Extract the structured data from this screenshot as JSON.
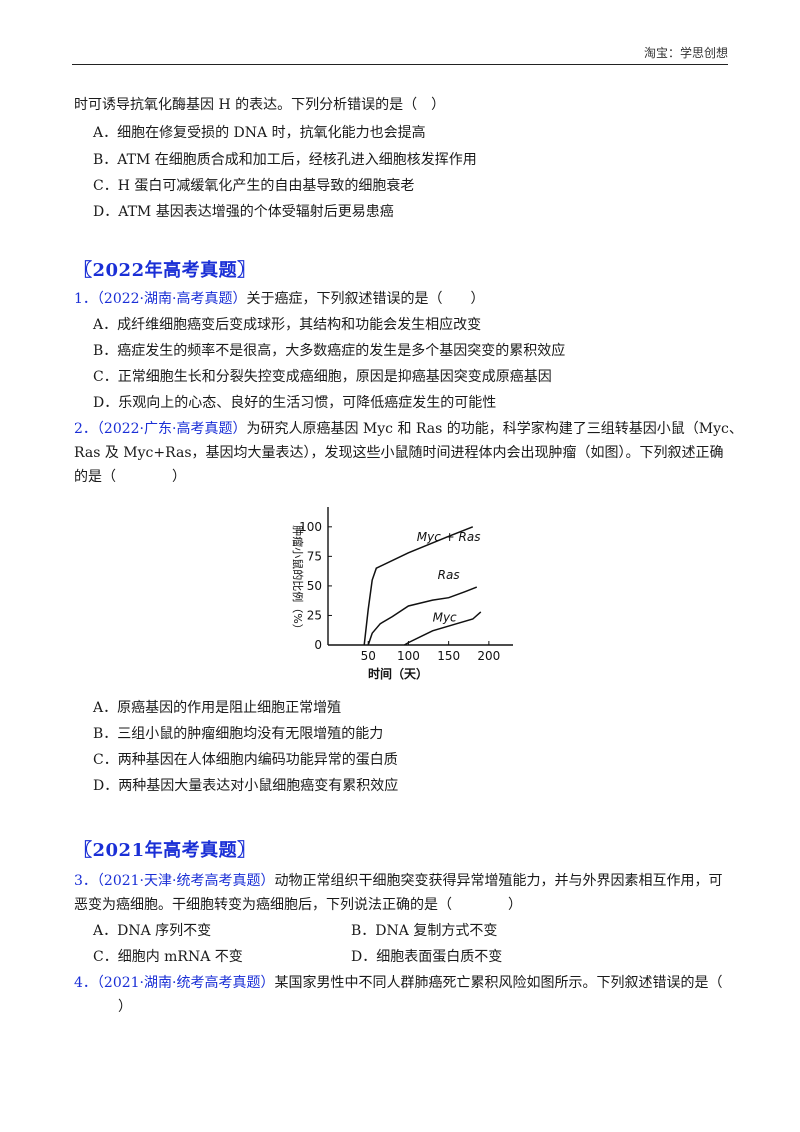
{
  "header": {
    "text": "淘宝：学思创想"
  },
  "q_prev": {
    "stem": "时可诱导抗氧化酶基因 H 的表达。下列分析错误的是（　）",
    "options": [
      "A．细胞在修复受损的 DNA 时，抗氧化能力也会提高",
      "B．ATM 在细胞质合成和加工后，经核孔进入细胞核发挥作用",
      "C．H 蛋白可减缓氧化产生的自由基导致的细胞衰老",
      "D．ATM 基因表达增强的个体受辐射后更易患癌"
    ]
  },
  "section_2022": "〖2022年高考真题〗",
  "q1": {
    "num": "1．",
    "source": "（2022·湖南·高考真题）",
    "stem": "关于癌症，下列叙述错误的是（　　）",
    "options": [
      "A．成纤维细胞癌变后变成球形，其结构和功能会发生相应改变",
      "B．癌症发生的频率不是很高，大多数癌症的发生是多个基因突变的累积效应",
      "C．正常细胞生长和分裂失控变成癌细胞，原因是抑癌基因突变成原癌基因",
      "D．乐观向上的心态、良好的生活习惯，可降低癌症发生的可能性"
    ]
  },
  "q2": {
    "num": "2．",
    "source": "（2022·广东·高考真题）",
    "stem_line1": "为研究人原癌基因 Myc 和 Ras 的功能，科学家构建了三组转基因小鼠（Myc、",
    "stem_line2": "Ras 及 Myc+Ras，基因均大量表达），发现这些小鼠随时间进程体内会出现肿瘤（如图）。下列叙述正确",
    "stem_line3": "的是（　　　　）",
    "options": [
      "A．原癌基因的作用是阻止细胞正常增殖",
      "B．三组小鼠的肿瘤细胞均没有无限增殖的能力",
      "C．两种基因在人体细胞内编码功能异常的蛋白质",
      "D．两种基因大量表达对小鼠细胞癌变有累积效应"
    ]
  },
  "chart_data": {
    "type": "line",
    "ylabel": "肿瘤小鼠的比例（%）",
    "xlabel": "时间（天）",
    "x_ticks": [
      "50",
      "100",
      "150",
      "200"
    ],
    "y_ticks": [
      "0",
      "25",
      "50",
      "75",
      "100"
    ],
    "xlim": [
      0,
      230
    ],
    "ylim": [
      0,
      110
    ],
    "series": [
      {
        "name": "Myc + Ras",
        "points": [
          [
            45,
            0
          ],
          [
            50,
            30
          ],
          [
            55,
            55
          ],
          [
            60,
            65
          ],
          [
            100,
            78
          ],
          [
            150,
            92
          ],
          [
            180,
            100
          ]
        ]
      },
      {
        "name": "Ras",
        "points": [
          [
            50,
            0
          ],
          [
            55,
            10
          ],
          [
            65,
            18
          ],
          [
            80,
            24
          ],
          [
            100,
            33
          ],
          [
            130,
            38
          ],
          [
            150,
            40
          ],
          [
            170,
            45
          ],
          [
            185,
            49
          ]
        ]
      },
      {
        "name": "Myc",
        "points": [
          [
            95,
            0
          ],
          [
            100,
            2
          ],
          [
            130,
            12
          ],
          [
            160,
            18
          ],
          [
            180,
            22
          ],
          [
            190,
            28
          ]
        ]
      }
    ]
  },
  "section_2021": "〖2021年高考真题〗",
  "q3": {
    "num": "3．",
    "source": "（2021·天津·统考高考真题）",
    "stem_line1": "动物正常组织干细胞突变获得异常增殖能力，并与外界因素相互作用，可",
    "stem_line2": "恶变为癌细胞。干细胞转变为癌细胞后，下列说法正确的是（　　　　）",
    "options": [
      "A．DNA 序列不变",
      "B．DNA 复制方式不变",
      "C．细胞内 mRNA 不变",
      "D．细胞表面蛋白质不变"
    ]
  },
  "q4": {
    "num": "4．",
    "source": "（2021·湖南·统考高考真题）",
    "stem_line1": "某国家男性中不同人群肺癌死亡累积风险如图所示。下列叙述错误的是（",
    "stem_line2": "）"
  }
}
